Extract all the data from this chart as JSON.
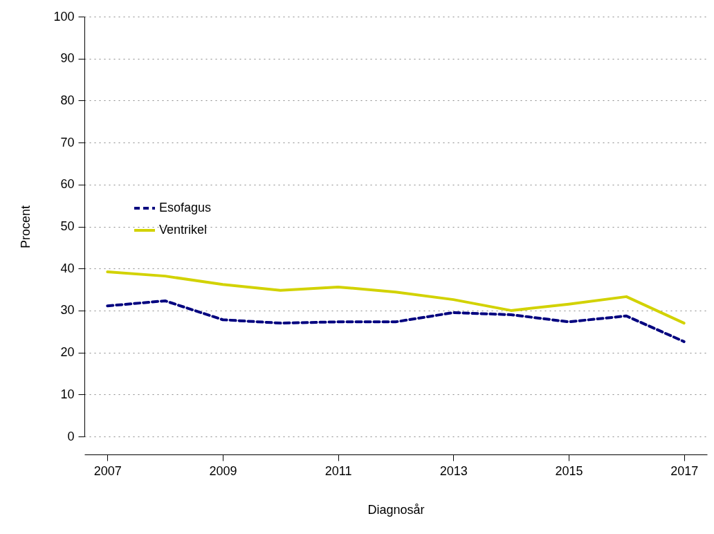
{
  "chart_data": {
    "type": "line",
    "xlabel": "Diagnosår",
    "ylabel": "Procent",
    "x": [
      2007,
      2008,
      2009,
      2010,
      2011,
      2012,
      2013,
      2014,
      2015,
      2016,
      2017
    ],
    "series": [
      {
        "name": "Esofagus",
        "color": "#00007f",
        "line_style": "dashed",
        "values": [
          31.1,
          32.3,
          27.8,
          27.0,
          27.3,
          27.3,
          29.5,
          29.0,
          27.3,
          28.7,
          22.6
        ]
      },
      {
        "name": "Ventrikel",
        "color": "#d2d200",
        "line_style": "solid",
        "values": [
          39.2,
          38.2,
          36.2,
          34.8,
          35.6,
          34.4,
          32.6,
          30.0,
          31.5,
          33.3,
          27.0
        ]
      }
    ],
    "xlim": [
      2006.6,
      2017.4
    ],
    "xticks": [
      2007,
      2009,
      2011,
      2013,
      2015,
      2017
    ],
    "ylim": [
      0,
      100
    ],
    "yticks": [
      0,
      10,
      20,
      30,
      40,
      50,
      60,
      70,
      80,
      90,
      100
    ],
    "grid": "y",
    "legend": "left"
  }
}
